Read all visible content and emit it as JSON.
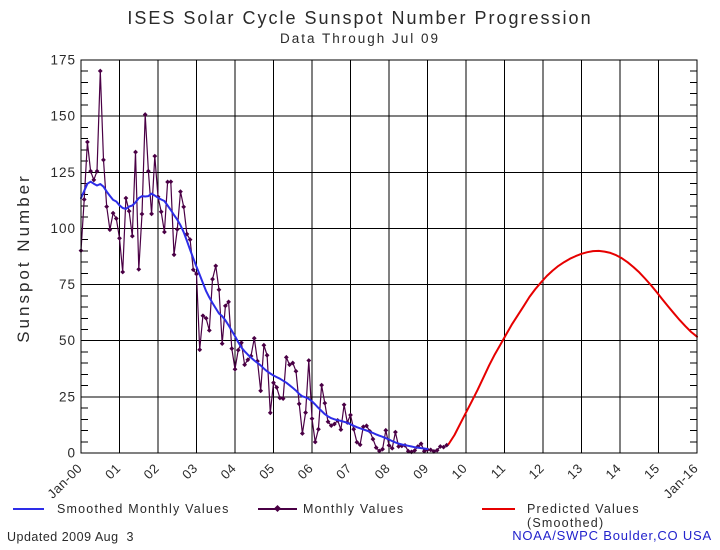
{
  "header": {
    "title": "ISES Solar Cycle Sunspot Number Progression",
    "subtitle": "Data Through Jul 09"
  },
  "footer": {
    "updated": "Updated 2009 Aug  3",
    "credit": "NOAA/SWPC Boulder,CO USA",
    "credit_color": "#2222cc"
  },
  "legend": [
    {
      "label": "Smoothed Monthly Values"
    },
    {
      "label": "Monthly Values"
    },
    {
      "label": "Predicted Values (Smoothed)"
    }
  ],
  "chart_data": {
    "type": "line",
    "title": "ISES Solar Cycle Sunspot Number Progression",
    "subtitle": "Data Through Jul 09",
    "xlabel": "",
    "ylabel": "Sunspot Number",
    "ylim": [
      0,
      175
    ],
    "xlim_years": [
      2000,
      2016
    ],
    "grid": true,
    "y_ticks": [
      0,
      25,
      50,
      75,
      100,
      125,
      150,
      175
    ],
    "y_minor_step": 5,
    "x_tick_labels": [
      "Jan-00",
      "01",
      "02",
      "03",
      "04",
      "05",
      "06",
      "07",
      "08",
      "09",
      "10",
      "11",
      "12",
      "13",
      "14",
      "15",
      "Jan-16"
    ],
    "axis_color": "#000000",
    "text_color": "#2a2a2a",
    "series": [
      {
        "name": "Smoothed Monthly Values",
        "style": "line",
        "color": "#2d2de8",
        "start_year": 2000,
        "start_month": 1,
        "cadence": "monthly",
        "values": [
          113.5,
          116.7,
          119.9,
          120.8,
          119.9,
          119.1,
          119.8,
          118.6,
          116.4,
          114.5,
          112.7,
          112.0,
          110.3,
          109.1,
          108.7,
          109.7,
          110.2,
          111.6,
          113.5,
          114.4,
          114.2,
          114.4,
          115.5,
          114.6,
          113.7,
          112.9,
          112.2,
          110.2,
          108.2,
          106.0,
          103.9,
          101.4,
          98.3,
          94.5,
          90.5,
          86.7,
          82.9,
          79.4,
          75.7,
          72.1,
          69.3,
          66.8,
          64.4,
          62.1,
          60.9,
          59.1,
          56.8,
          54.4,
          52.0,
          49.4,
          47.0,
          45.3,
          43.8,
          42.5,
          41.2,
          40.1,
          39.0,
          37.6,
          36.4,
          35.4,
          34.5,
          33.8,
          33.1,
          32.2,
          31.3,
          30.2,
          29.0,
          27.8,
          26.3,
          25.2,
          24.8,
          24.1,
          23.0,
          21.6,
          20.1,
          18.7,
          17.3,
          16.3,
          15.5,
          15.0,
          14.6,
          14.3,
          13.9,
          13.5,
          12.8,
          12.1,
          11.5,
          11.0,
          10.5,
          10.0,
          9.5,
          8.9,
          8.3,
          7.7,
          7.2,
          6.6,
          6.0,
          5.3,
          4.7,
          4.2,
          3.8,
          3.5,
          3.2,
          2.9,
          2.6,
          2.4,
          2.2,
          2.0,
          1.8
        ]
      },
      {
        "name": "Monthly Values",
        "style": "line+diamond",
        "color": "#4a0045",
        "start_year": 2000,
        "start_month": 1,
        "cadence": "monthly",
        "values": [
          90.1,
          112.9,
          138.5,
          125.5,
          121.6,
          125.5,
          170.1,
          130.5,
          109.7,
          99.4,
          106.8,
          104.4,
          95.6,
          80.6,
          113.5,
          107.7,
          96.6,
          134.0,
          81.8,
          106.4,
          150.7,
          125.5,
          106.5,
          132.2,
          114.1,
          107.4,
          98.4,
          120.7,
          120.8,
          88.3,
          99.6,
          116.4,
          109.6,
          97.5,
          95.0,
          81.6,
          79.7,
          46.0,
          61.1,
          60.0,
          54.6,
          77.4,
          83.3,
          72.7,
          48.7,
          65.5,
          67.3,
          46.5,
          37.3,
          45.8,
          49.1,
          39.3,
          41.5,
          43.2,
          51.1,
          40.9,
          27.7,
          48.0,
          43.5,
          17.9,
          31.3,
          29.2,
          24.5,
          24.2,
          42.6,
          39.3,
          40.1,
          36.4,
          21.9,
          8.7,
          18.0,
          41.2,
          15.3,
          4.9,
          10.6,
          30.2,
          22.2,
          13.9,
          12.2,
          12.9,
          14.5,
          10.4,
          21.5,
          13.6,
          16.9,
          10.6,
          4.8,
          3.7,
          11.7,
          12.1,
          9.7,
          6.2,
          2.4,
          0.9,
          1.7,
          10.1,
          3.4,
          2.1,
          9.3,
          2.9,
          3.2,
          3.4,
          0.8,
          0.5,
          1.1,
          2.9,
          4.1,
          0.8,
          1.5,
          1.4,
          0.7,
          1.2,
          2.9,
          2.6,
          3.5
        ]
      },
      {
        "name": "Predicted Values (Smoothed)",
        "style": "line",
        "color": "#e60000",
        "points": [
          [
            2009.55,
            4
          ],
          [
            2009.7,
            8
          ],
          [
            2009.85,
            13
          ],
          [
            2010.0,
            18
          ],
          [
            2010.15,
            23
          ],
          [
            2010.3,
            28
          ],
          [
            2010.45,
            33.5
          ],
          [
            2010.6,
            39
          ],
          [
            2010.75,
            44
          ],
          [
            2010.9,
            48.5
          ],
          [
            2011.05,
            53
          ],
          [
            2011.2,
            57.5
          ],
          [
            2011.35,
            61.5
          ],
          [
            2011.5,
            65.5
          ],
          [
            2011.65,
            69.5
          ],
          [
            2011.8,
            73
          ],
          [
            2011.95,
            76
          ],
          [
            2012.1,
            78.8
          ],
          [
            2012.25,
            81.2
          ],
          [
            2012.4,
            83.3
          ],
          [
            2012.55,
            85
          ],
          [
            2012.7,
            86.5
          ],
          [
            2012.85,
            87.7
          ],
          [
            2013.0,
            88.7
          ],
          [
            2013.15,
            89.4
          ],
          [
            2013.3,
            89.9
          ],
          [
            2013.45,
            90
          ],
          [
            2013.6,
            89.7
          ],
          [
            2013.75,
            89.1
          ],
          [
            2013.9,
            88.1
          ],
          [
            2014.05,
            86.7
          ],
          [
            2014.2,
            84.9
          ],
          [
            2014.35,
            82.8
          ],
          [
            2014.5,
            80.4
          ],
          [
            2014.65,
            77.7
          ],
          [
            2014.8,
            74.8
          ],
          [
            2014.95,
            71.7
          ],
          [
            2015.1,
            68.5
          ],
          [
            2015.25,
            65.3
          ],
          [
            2015.4,
            62.2
          ],
          [
            2015.55,
            59.2
          ],
          [
            2015.7,
            56.4
          ],
          [
            2015.85,
            53.9
          ],
          [
            2016.0,
            51.8
          ]
        ]
      }
    ]
  }
}
